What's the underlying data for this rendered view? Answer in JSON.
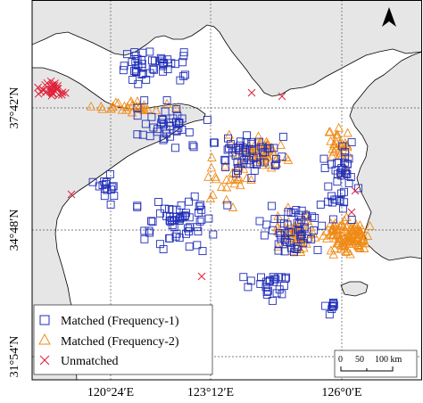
{
  "map": {
    "lon_labels": [
      "120°24′E",
      "123°12′E",
      "126°0′E"
    ],
    "lat_labels": [
      "37°42′N",
      "34°48′N",
      "31°54′N"
    ],
    "north_arrow": "north-arrow-icon",
    "colors": {
      "land": "#e6e6e6",
      "sea": "#ffffff",
      "coastline": "#000000",
      "grid": "#555555",
      "matched_f1": "#1f2db8",
      "matched_f2": "#f08a16",
      "unmatched": "#e0203a"
    }
  },
  "legend": {
    "items": [
      {
        "label": "Matched (Frequency-1)",
        "symbol": "square-icon"
      },
      {
        "label": "Matched (Frequency-2)",
        "symbol": "triangle-icon"
      },
      {
        "label": "Unmatched",
        "symbol": "x-icon"
      }
    ]
  },
  "scale_bar": {
    "labels": [
      "0",
      "50",
      "100 km"
    ]
  }
}
